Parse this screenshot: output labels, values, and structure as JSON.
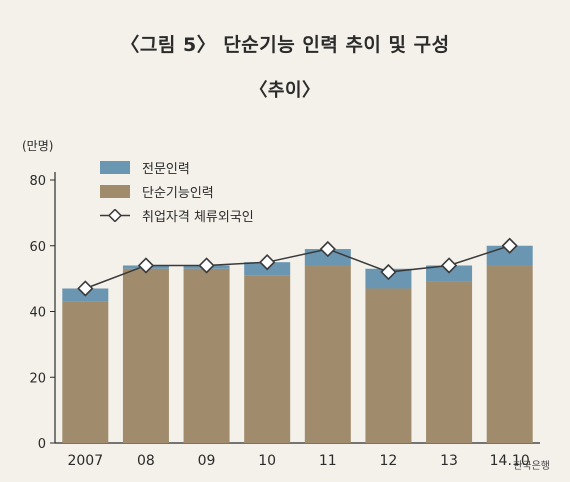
{
  "chart_data": {
    "type": "bar",
    "title": "〈그림 5〉 단순기능 인력 추이 및 구성",
    "subtitle": "〈추이〉",
    "ylabel": "(만명)",
    "ylim": [
      0,
      80
    ],
    "yticks": [
      "0",
      "20",
      "40",
      "60",
      "80"
    ],
    "categories": [
      "2007",
      "08",
      "09",
      "10",
      "11",
      "12",
      "13",
      "14.10"
    ],
    "series": [
      {
        "name": "단순기능인력",
        "kind": "bar",
        "values": [
          43,
          53,
          53,
          51,
          54,
          47,
          49,
          54
        ]
      },
      {
        "name": "전문인력",
        "kind": "bar",
        "values": [
          4,
          1,
          1,
          4,
          5,
          6,
          5,
          6
        ]
      },
      {
        "name": "취업자격 체류외국인",
        "kind": "line",
        "values": [
          47,
          54,
          54,
          55,
          59,
          52,
          54,
          60
        ]
      }
    ],
    "colors": {
      "unskilled": "#a08c6c",
      "professional": "#6a96b2",
      "line": "#3a3a3a",
      "axis": "#2b2b2b"
    },
    "legend_position": "top-left",
    "grid": false
  },
  "source": "한국은행"
}
